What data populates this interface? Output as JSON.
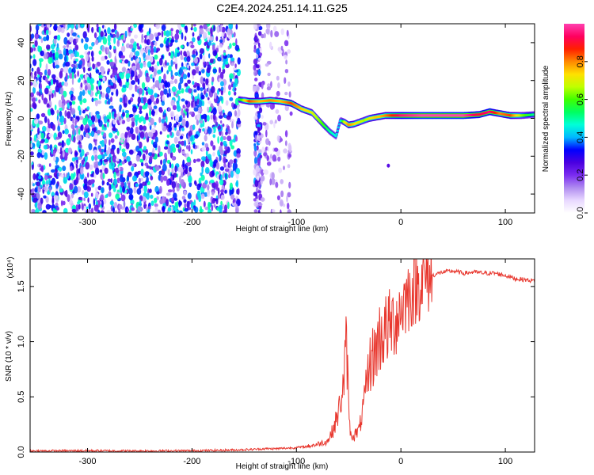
{
  "figure_title": "C2E4.2024.251.14.11.G25",
  "chart_data": [
    {
      "type": "heatmap",
      "title": "",
      "xlabel": "Height of straight line (km)",
      "ylabel": "Frequency (Hz)",
      "xlim": [
        -355,
        128
      ],
      "ylim": [
        -50,
        50
      ],
      "xticks": [
        -300,
        -200,
        -100,
        0,
        100
      ],
      "yticks": [
        -40,
        -20,
        0,
        20,
        40
      ],
      "grid": false,
      "colorbar": {
        "label": "Normalized spectral amplitude",
        "range": [
          0,
          1
        ],
        "ticks": [
          "0.0",
          "0.2",
          "0.4",
          "0.6",
          "0.8"
        ],
        "colors": [
          "#ffffff",
          "#e8d8ff",
          "#b08cf0",
          "#7a2cf0",
          "#4a00e0",
          "#0000ff",
          "#00b8ff",
          "#00ffd8",
          "#00ff60",
          "#40ff00",
          "#c0ff00",
          "#ffe000",
          "#ff8800",
          "#ff2000",
          "#ff0060",
          "#ff40b0"
        ]
      },
      "noise_region": {
        "x_from": -355,
        "x_to": -155,
        "level": 0.25
      },
      "noise_bands": [
        {
          "x_from": -140,
          "x_to": -134,
          "level": 0.2
        },
        {
          "x_from": -133,
          "x_to": -105,
          "level": 0.1
        }
      ],
      "ridge": {
        "x": [
          -155,
          -145,
          -135,
          -125,
          -115,
          -105,
          -95,
          -85,
          -75,
          -68,
          -62,
          -58,
          -54,
          -50,
          -45,
          -40,
          -35,
          -30,
          -25,
          -20,
          -15,
          -10,
          0,
          20,
          40,
          60,
          75,
          85,
          95,
          105,
          115,
          128
        ],
        "y": [
          10,
          9,
          9,
          9.5,
          9,
          8,
          5,
          3,
          -3,
          -7,
          -9.5,
          -1,
          -2,
          -3.5,
          -3,
          -2,
          -1,
          0,
          0.5,
          1,
          1.5,
          1.5,
          1.5,
          1.5,
          1.5,
          1.5,
          2,
          3.5,
          2.5,
          1.5,
          1.5,
          2
        ],
        "amplitude": [
          0.5,
          0.85,
          0.75,
          0.8,
          0.75,
          0.85,
          0.75,
          0.7,
          0.6,
          0.5,
          0.45,
          0.4,
          0.7,
          0.8,
          0.75,
          0.7,
          0.65,
          0.7,
          0.75,
          0.75,
          0.8,
          0.85,
          0.95,
          1.0,
          1.0,
          1.0,
          0.9,
          0.95,
          0.8,
          0.85,
          0.65,
          0.5
        ]
      },
      "outlier": {
        "x": -12,
        "y": -25
      }
    },
    {
      "type": "line",
      "title": "",
      "xlabel": "Height of straight line (km)",
      "ylabel": "SNR (10 * v/v)",
      "y_multiplier": "(x10⁴)",
      "xlim": [
        -355,
        128
      ],
      "ylim": [
        0,
        1.75
      ],
      "xticks": [
        -300,
        -200,
        -100,
        0,
        100
      ],
      "yticks": [
        "0.0",
        "0.5",
        "1.0",
        "1.5"
      ],
      "grid": false,
      "series": [
        {
          "color": "#e8382f",
          "x": [
            -355,
            -300,
            -250,
            -200,
            -160,
            -140,
            -130,
            -120,
            -110,
            -100,
            -90,
            -80,
            -70,
            -65,
            -60,
            -55,
            -52,
            -50,
            -48,
            -45,
            -40,
            -35,
            -30,
            -25,
            -20,
            -15,
            -10,
            -5,
            0,
            5,
            10,
            20,
            30,
            40,
            50,
            60,
            70,
            80,
            90,
            100,
            110,
            120,
            128
          ],
          "y": [
            0.01,
            0.012,
            0.01,
            0.012,
            0.018,
            0.025,
            0.03,
            0.03,
            0.035,
            0.04,
            0.05,
            0.07,
            0.1,
            0.2,
            0.35,
            0.6,
            1.0,
            0.4,
            0.15,
            0.15,
            0.2,
            0.45,
            0.8,
            0.9,
            1.05,
            1.1,
            1.15,
            1.2,
            1.3,
            1.4,
            1.45,
            1.55,
            1.6,
            1.63,
            1.64,
            1.62,
            1.63,
            1.62,
            1.62,
            1.6,
            1.57,
            1.56,
            1.55
          ]
        }
      ]
    }
  ]
}
